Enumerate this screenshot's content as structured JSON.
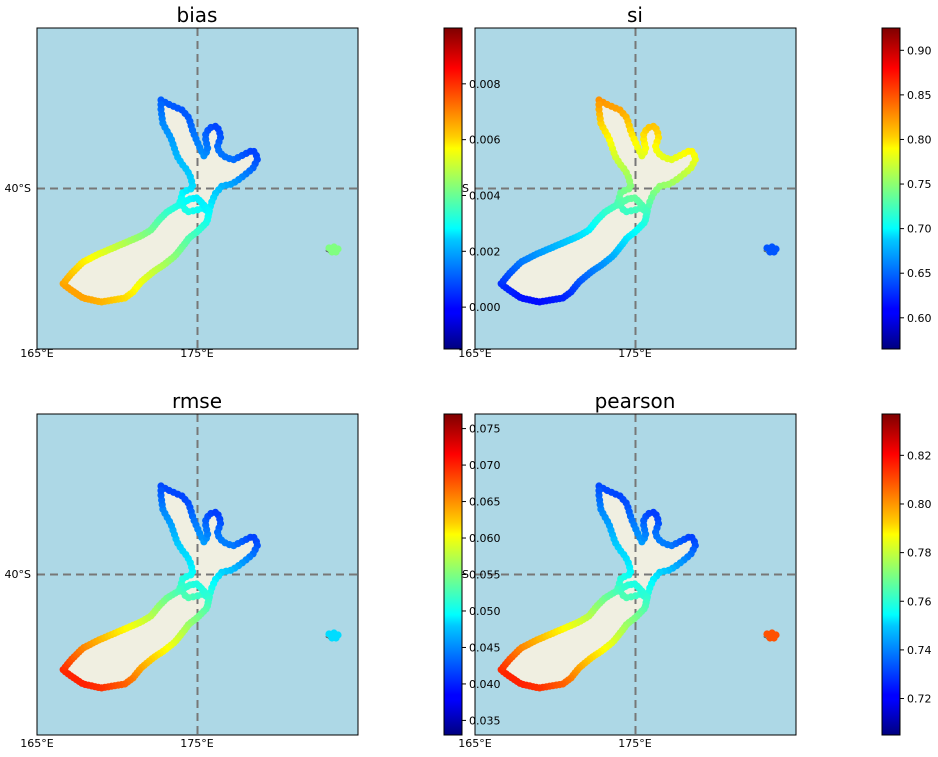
{
  "colors": {
    "ocean": "#add8e6",
    "land": "#f0efe1",
    "gridline": "#777777",
    "frame": "#000000"
  },
  "colormap": "jet",
  "map_extent": {
    "lon": [
      165,
      185
    ],
    "lat": [
      -50,
      -30
    ]
  },
  "chart_data": [
    {
      "type": "map-scatter",
      "title": "bias",
      "lon_ticks": [
        {
          "value": 165,
          "label": "165°E"
        },
        {
          "value": 175,
          "label": "175°E"
        }
      ],
      "lat_ticks": [
        {
          "value": -40,
          "label": "40°S"
        }
      ],
      "gridlines": {
        "lon": [
          175
        ],
        "lat": [
          -40
        ],
        "style": "dashed"
      },
      "colorbar": {
        "min": -0.0015,
        "max": 0.01,
        "ticks": [],
        "labels": []
      },
      "colour_by_point": "west-south-high",
      "point_value_range": [
        -0.001,
        0.0095
      ],
      "chatham_value": 0.003
    },
    {
      "type": "map-scatter",
      "title": "si",
      "lon_ticks": [
        {
          "value": 165,
          "label": "165°E"
        },
        {
          "value": 175,
          "label": "175°E"
        }
      ],
      "lat_ticks": [
        {
          "value": -40,
          "label": "S"
        }
      ],
      "gridlines": {
        "lon": [
          175
        ],
        "lat": [
          -40
        ],
        "style": "dashed"
      },
      "colorbar": {
        "min": -0.0015,
        "max": 0.01,
        "ticks": [
          0.0,
          0.002,
          0.004,
          0.006,
          0.008
        ],
        "labels": [
          "0.000",
          "0.002",
          "0.004",
          "0.006",
          "0.008"
        ]
      },
      "colorbar_right": {
        "min": 0.565,
        "max": 0.925,
        "ticks": [
          0.6,
          0.65,
          0.7,
          0.75,
          0.8,
          0.85,
          0.9
        ],
        "labels": [
          "0.60",
          "0.65",
          "0.70",
          "0.75",
          "0.80",
          "0.85",
          "0.90"
        ]
      },
      "colour_by_point": "north-high-south-low",
      "point_value_range": [
        0.57,
        0.91
      ],
      "chatham_value": 0.64
    },
    {
      "type": "map-scatter",
      "title": "rmse",
      "lon_ticks": [
        {
          "value": 165,
          "label": "165°E"
        },
        {
          "value": 175,
          "label": "175°E"
        }
      ],
      "lat_ticks": [
        {
          "value": -40,
          "label": "40°S"
        }
      ],
      "gridlines": {
        "lon": [
          175
        ],
        "lat": [
          -40
        ],
        "style": "dashed"
      },
      "colorbar": {
        "min": 0.033,
        "max": 0.077,
        "ticks": [
          0.035,
          0.04,
          0.045,
          0.05,
          0.055,
          0.06,
          0.065,
          0.07,
          0.075
        ],
        "labels": [
          "0.035",
          "0.040",
          "0.045",
          "0.050",
          "0.055",
          "0.060",
          "0.065",
          "0.070",
          "0.075"
        ]
      },
      "colour_by_point": "south-west-high",
      "point_value_range": [
        0.035,
        0.075
      ],
      "chatham_value": 0.048
    },
    {
      "type": "map-scatter",
      "title": "pearson",
      "lon_ticks": [
        {
          "value": 165,
          "label": "165°E"
        },
        {
          "value": 175,
          "label": "175°E"
        }
      ],
      "lat_ticks": [
        {
          "value": -40,
          "label": "S"
        }
      ],
      "gridlines": {
        "lon": [
          175
        ],
        "lat": [
          -40
        ],
        "style": "dashed"
      },
      "colorbar": {
        "min": 0.705,
        "max": 0.837,
        "ticks": [
          0.72,
          0.74,
          0.76,
          0.78,
          0.8,
          0.82
        ],
        "labels": [
          "0.72",
          "0.74",
          "0.76",
          "0.78",
          "0.80",
          "0.82"
        ]
      },
      "colour_by_point": "south-west-high",
      "point_value_range": [
        0.71,
        0.835
      ],
      "chatham_value": 0.81
    }
  ]
}
